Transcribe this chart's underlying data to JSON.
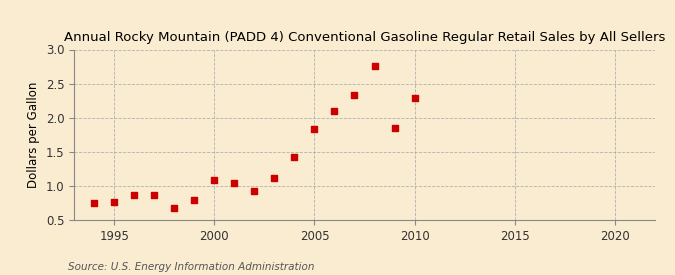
{
  "title": "Annual Rocky Mountain (PADD 4) Conventional Gasoline Regular Retail Sales by All Sellers",
  "ylabel": "Dollars per Gallon",
  "source": "Source: U.S. Energy Information Administration",
  "background_color": "#faecd0",
  "marker_color": "#cc0000",
  "years": [
    1994,
    1995,
    1996,
    1997,
    1998,
    1999,
    2000,
    2001,
    2002,
    2003,
    2004,
    2005,
    2006,
    2007,
    2008,
    2009,
    2010
  ],
  "values": [
    0.75,
    0.76,
    0.87,
    0.87,
    0.68,
    0.8,
    1.09,
    1.04,
    0.93,
    1.11,
    1.42,
    1.84,
    2.1,
    2.33,
    2.76,
    1.85,
    2.29
  ],
  "xlim": [
    1993,
    2022
  ],
  "ylim": [
    0.5,
    3.0
  ],
  "xticks": [
    1995,
    2000,
    2005,
    2010,
    2015,
    2020
  ],
  "yticks": [
    0.5,
    1.0,
    1.5,
    2.0,
    2.5,
    3.0
  ],
  "grid_color": "#aaaaaa",
  "title_fontsize": 9.5,
  "label_fontsize": 8.5,
  "source_fontsize": 7.5
}
